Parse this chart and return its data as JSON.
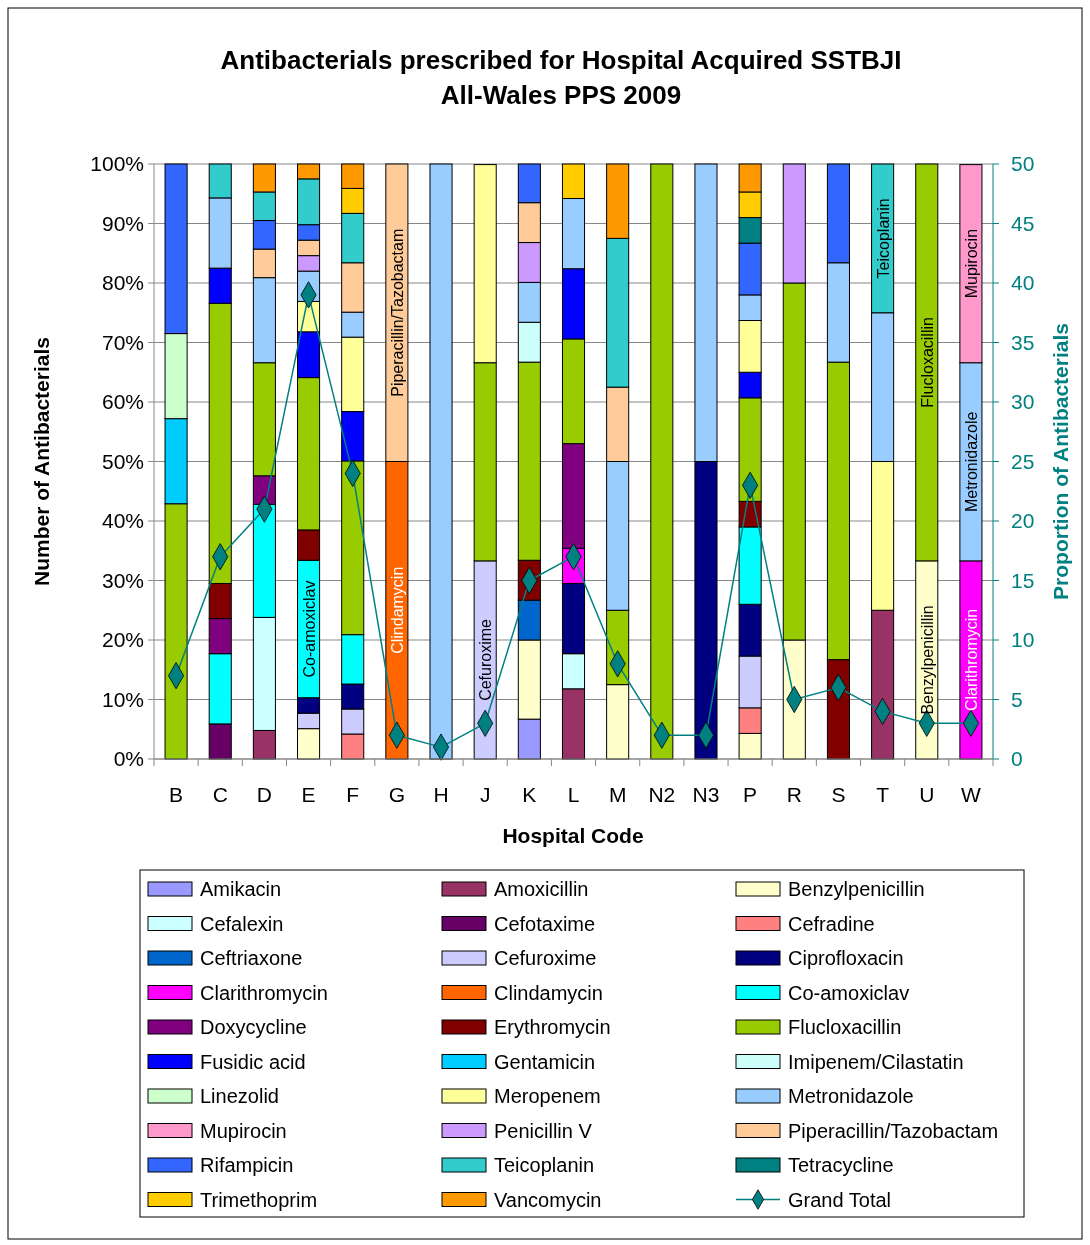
{
  "chart_data": {
    "type": "bar",
    "stacked": true,
    "title": "Antibacterials prescribed for Hospital Acquired SSTBJI",
    "subtitle": "All-Wales PPS 2009",
    "xlabel": "Hospital Code",
    "ylabel": "Number of Antibacterials",
    "y2label": "Proportion of Antibacterials",
    "categories": [
      "B",
      "C",
      "D",
      "E",
      "F",
      "G",
      "H",
      "J",
      "K",
      "L",
      "M",
      "N2",
      "N3",
      "P",
      "R",
      "S",
      "T",
      "U",
      "W"
    ],
    "ylim": [
      0,
      100
    ],
    "yticks": [
      {
        "value": 0,
        "label": "0%"
      },
      {
        "value": 10,
        "label": "10%"
      },
      {
        "value": 20,
        "label": "20%"
      },
      {
        "value": 30,
        "label": "30%"
      },
      {
        "value": 40,
        "label": "40%"
      },
      {
        "value": 50,
        "label": "50%"
      },
      {
        "value": 60,
        "label": "60%"
      },
      {
        "value": 70,
        "label": "70%"
      },
      {
        "value": 80,
        "label": "80%"
      },
      {
        "value": 90,
        "label": "90%"
      },
      {
        "value": 100,
        "label": "100%"
      }
    ],
    "y2lim": [
      0,
      50
    ],
    "y2ticks": [
      0,
      5,
      10,
      15,
      20,
      25,
      30,
      35,
      40,
      45,
      50
    ],
    "grid": "y",
    "legend": "bottom",
    "marker": "diamond",
    "series": [
      {
        "name": "Amikacin",
        "color": "#9999ff",
        "values": [
          null,
          null,
          null,
          null,
          null,
          null,
          null,
          null,
          6.7,
          null,
          null,
          null,
          null,
          null,
          null,
          null,
          null,
          null,
          null
        ]
      },
      {
        "name": "Amoxicillin",
        "color": "#993366",
        "values": [
          null,
          null,
          4.8,
          null,
          null,
          null,
          null,
          null,
          null,
          11.8,
          null,
          null,
          null,
          null,
          null,
          null,
          25,
          null,
          null
        ]
      },
      {
        "name": "Benzylpenicillin",
        "color": "#ffffcc",
        "values": [
          null,
          null,
          null,
          5.1,
          null,
          null,
          null,
          null,
          13.3,
          null,
          12.5,
          null,
          null,
          4.3,
          20,
          null,
          null,
          33.3,
          null
        ],
        "value_labels": [
          null,
          null,
          null,
          null,
          null,
          null,
          null,
          null,
          null,
          null,
          null,
          null,
          null,
          null,
          null,
          null,
          null,
          "Benzylpenicillin",
          null
        ]
      },
      {
        "name": "Cefalexin",
        "color": "#ccffff",
        "values": [
          null,
          null,
          19.0,
          null,
          null,
          null,
          null,
          null,
          null,
          5.9,
          null,
          null,
          null,
          null,
          null,
          null,
          null,
          null,
          null
        ]
      },
      {
        "name": "Cefotaxime",
        "color": "#660066",
        "values": [
          null,
          5.9,
          null,
          null,
          null,
          null,
          null,
          null,
          null,
          null,
          null,
          null,
          null,
          null,
          null,
          null,
          null,
          null,
          null
        ]
      },
      {
        "name": "Cefradine",
        "color": "#ff8080",
        "values": [
          null,
          null,
          null,
          null,
          4.2,
          null,
          null,
          null,
          null,
          null,
          null,
          null,
          null,
          4.3,
          null,
          null,
          null,
          null,
          null
        ]
      },
      {
        "name": "Ceftriaxone",
        "color": "#0066cc",
        "values": [
          null,
          null,
          null,
          null,
          null,
          null,
          null,
          null,
          6.7,
          null,
          null,
          null,
          null,
          null,
          null,
          null,
          null,
          null,
          null
        ]
      },
      {
        "name": "Cefuroxime",
        "color": "#ccccff",
        "values": [
          null,
          null,
          null,
          2.6,
          4.2,
          null,
          null,
          33.3,
          null,
          null,
          null,
          null,
          null,
          8.7,
          null,
          null,
          null,
          null,
          null
        ],
        "value_labels": [
          null,
          null,
          null,
          null,
          null,
          null,
          null,
          "Cefuroxime",
          null,
          null,
          null,
          null,
          null,
          null,
          null,
          null,
          null,
          null,
          null
        ]
      },
      {
        "name": "Ciprofloxacin",
        "color": "#000080",
        "values": [
          null,
          null,
          null,
          2.6,
          4.2,
          null,
          null,
          null,
          null,
          11.8,
          null,
          null,
          50,
          8.7,
          null,
          null,
          null,
          null,
          null
        ]
      },
      {
        "name": "Clarithromycin",
        "color": "#ff00ff",
        "values": [
          null,
          null,
          null,
          null,
          null,
          null,
          null,
          null,
          null,
          5.9,
          null,
          null,
          null,
          null,
          null,
          null,
          null,
          null,
          33.3
        ],
        "value_labels": [
          null,
          null,
          null,
          null,
          null,
          null,
          null,
          null,
          null,
          null,
          null,
          null,
          null,
          null,
          null,
          null,
          null,
          null,
          "Clarithromycin"
        ]
      },
      {
        "name": "Clindamycin",
        "color": "#ff6600",
        "values": [
          null,
          null,
          null,
          null,
          null,
          50,
          null,
          null,
          null,
          null,
          null,
          null,
          null,
          null,
          null,
          null,
          null,
          null,
          null
        ],
        "value_labels": [
          null,
          null,
          null,
          null,
          null,
          "Clindamycin",
          null,
          null,
          null,
          null,
          null,
          null,
          null,
          null,
          null,
          null,
          null,
          null,
          null
        ]
      },
      {
        "name": "Co-amoxiclav",
        "color": "#00ffff",
        "values": [
          null,
          11.8,
          19.0,
          23.1,
          8.3,
          null,
          null,
          null,
          null,
          null,
          null,
          null,
          null,
          13.0,
          null,
          null,
          null,
          null,
          null
        ],
        "value_labels": [
          null,
          null,
          null,
          "Co-amoxiclav",
          null,
          null,
          null,
          null,
          null,
          null,
          null,
          null,
          null,
          null,
          null,
          null,
          null,
          null,
          null
        ]
      },
      {
        "name": "Doxycycline",
        "color": "#800080",
        "values": [
          null,
          5.9,
          4.8,
          null,
          null,
          null,
          null,
          null,
          null,
          17.6,
          null,
          null,
          null,
          null,
          null,
          null,
          null,
          null,
          null
        ]
      },
      {
        "name": "Erythromycin",
        "color": "#800000",
        "values": [
          null,
          5.9,
          null,
          5.1,
          null,
          null,
          null,
          null,
          6.7,
          null,
          null,
          null,
          null,
          4.3,
          null,
          16.7,
          null,
          null,
          null
        ]
      },
      {
        "name": "Flucloxacillin",
        "color": "#99cc00",
        "values": [
          42.9,
          47.1,
          19.0,
          25.6,
          29.2,
          null,
          null,
          33.3,
          33.3,
          17.6,
          12.5,
          100,
          null,
          17.4,
          60,
          50,
          null,
          66.7,
          null
        ],
        "value_labels": [
          null,
          null,
          null,
          null,
          null,
          null,
          null,
          null,
          null,
          null,
          null,
          null,
          null,
          null,
          null,
          null,
          null,
          "Flucloxacillin",
          null
        ]
      },
      {
        "name": "Fusidic acid",
        "color": "#0000ff",
        "values": [
          null,
          5.9,
          null,
          7.7,
          8.3,
          null,
          null,
          null,
          null,
          11.8,
          null,
          null,
          null,
          4.3,
          null,
          null,
          null,
          null,
          null
        ]
      },
      {
        "name": "Gentamicin",
        "color": "#00ccff",
        "values": [
          14.3,
          null,
          null,
          null,
          null,
          null,
          null,
          null,
          null,
          null,
          null,
          null,
          null,
          null,
          null,
          null,
          null,
          null,
          null
        ]
      },
      {
        "name": "Imipenem/Cilastatin",
        "color": "#ccfffa",
        "values": [
          null,
          null,
          null,
          null,
          null,
          null,
          null,
          null,
          6.7,
          null,
          null,
          null,
          null,
          null,
          null,
          null,
          null,
          null,
          null
        ]
      },
      {
        "name": "Linezolid",
        "color": "#ccffcc",
        "values": [
          14.3,
          null,
          null,
          null,
          null,
          null,
          null,
          null,
          null,
          null,
          null,
          null,
          null,
          null,
          null,
          null,
          null,
          null,
          null
        ]
      },
      {
        "name": "Meropenem",
        "color": "#ffff99",
        "values": [
          null,
          null,
          null,
          5.1,
          12.5,
          null,
          null,
          33.3,
          null,
          null,
          null,
          null,
          null,
          8.7,
          null,
          null,
          25,
          null,
          null
        ]
      },
      {
        "name": "Metronidazole",
        "color": "#99ccff",
        "values": [
          null,
          11.8,
          14.3,
          5.1,
          4.2,
          null,
          100,
          null,
          6.7,
          11.8,
          25,
          null,
          50,
          4.3,
          null,
          16.7,
          25,
          null,
          33.3
        ],
        "value_labels": [
          null,
          null,
          null,
          null,
          null,
          null,
          null,
          null,
          null,
          null,
          null,
          null,
          null,
          null,
          null,
          null,
          null,
          null,
          "Metronidazole"
        ]
      },
      {
        "name": "Mupirocin",
        "color": "#ff99cc",
        "values": [
          null,
          null,
          null,
          null,
          null,
          null,
          null,
          null,
          null,
          null,
          null,
          null,
          null,
          null,
          null,
          null,
          null,
          null,
          33.3
        ],
        "value_labels": [
          null,
          null,
          null,
          null,
          null,
          null,
          null,
          null,
          null,
          null,
          null,
          null,
          null,
          null,
          null,
          null,
          null,
          null,
          "Mupirocin"
        ]
      },
      {
        "name": "Penicillin V",
        "color": "#cc99ff",
        "values": [
          null,
          null,
          null,
          2.6,
          null,
          null,
          null,
          null,
          6.7,
          null,
          null,
          null,
          null,
          null,
          20,
          null,
          null,
          null,
          null
        ]
      },
      {
        "name": "Piperacillin/Tazobactam",
        "color": "#ffcc99",
        "values": [
          null,
          null,
          4.8,
          2.6,
          8.3,
          50,
          null,
          null,
          6.7,
          null,
          12.5,
          null,
          null,
          null,
          null,
          null,
          null,
          null,
          null
        ],
        "value_labels": [
          null,
          null,
          null,
          null,
          null,
          "Piperacillin/Tazobactam",
          null,
          null,
          null,
          null,
          null,
          null,
          null,
          null,
          null,
          null,
          null,
          null,
          null
        ]
      },
      {
        "name": "Rifampicin",
        "color": "#3366ff",
        "values": [
          28.5,
          null,
          4.8,
          2.6,
          null,
          null,
          null,
          null,
          6.5,
          null,
          null,
          null,
          null,
          8.7,
          null,
          16.6,
          null,
          null,
          null
        ]
      },
      {
        "name": "Teicoplanin",
        "color": "#33cccc",
        "values": [
          null,
          5.7,
          4.8,
          7.7,
          8.3,
          null,
          null,
          null,
          null,
          null,
          25,
          null,
          null,
          null,
          null,
          null,
          25,
          null,
          null
        ],
        "value_labels": [
          null,
          null,
          null,
          null,
          null,
          null,
          null,
          null,
          null,
          null,
          null,
          null,
          null,
          null,
          null,
          null,
          "Teicoplanin",
          null,
          null
        ]
      },
      {
        "name": "Tetracycline",
        "color": "#008080",
        "values": [
          null,
          null,
          null,
          null,
          null,
          null,
          null,
          null,
          null,
          null,
          null,
          null,
          null,
          4.3,
          null,
          null,
          null,
          null,
          null
        ]
      },
      {
        "name": "Trimethoprim",
        "color": "#ffcc00",
        "values": [
          null,
          null,
          null,
          null,
          4.2,
          null,
          null,
          null,
          null,
          5.8,
          null,
          null,
          null,
          4.3,
          null,
          null,
          null,
          null,
          null
        ]
      },
      {
        "name": "Vancomycin",
        "color": "#ff9900",
        "values": [
          null,
          null,
          4.7,
          2.5,
          4.1,
          null,
          null,
          null,
          null,
          null,
          12.5,
          null,
          null,
          4.7,
          null,
          null,
          null,
          null,
          null
        ]
      },
      {
        "name": "Grand Total",
        "type": "line",
        "axis": "y2",
        "color": "#008080",
        "values": [
          7,
          17,
          21,
          39,
          24,
          2,
          1,
          3,
          15,
          17,
          8,
          2,
          2,
          23,
          5,
          6,
          4,
          3,
          3
        ]
      }
    ]
  }
}
